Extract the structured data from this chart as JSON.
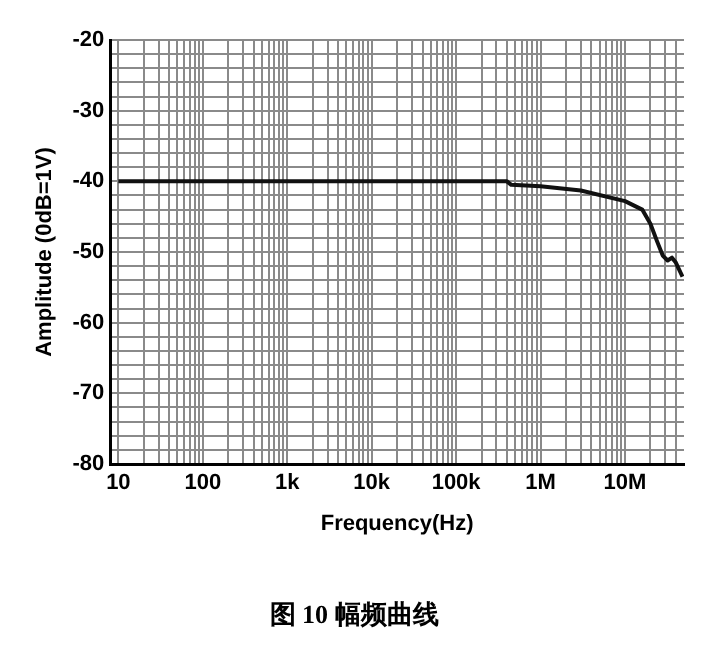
{
  "chart_data": {
    "type": "line",
    "title": "图 10 幅频曲线",
    "xlabel": "Frequency(Hz)",
    "ylabel": "Amplitude (0dB=1V)",
    "log": "x",
    "grid": true,
    "legend": false,
    "marker": "none",
    "line_style": "solid",
    "xlim": [
      8,
      50000000
    ],
    "ylim": [
      -80,
      -20
    ],
    "xticks": [
      {
        "value": 10,
        "label": "10"
      },
      {
        "value": 20,
        "label": null
      },
      {
        "value": 30,
        "label": null
      },
      {
        "value": 40,
        "label": null
      },
      {
        "value": 50,
        "label": null
      },
      {
        "value": 60,
        "label": null
      },
      {
        "value": 70,
        "label": null
      },
      {
        "value": 80,
        "label": null
      },
      {
        "value": 90,
        "label": null
      },
      {
        "value": 100,
        "label": "100"
      },
      {
        "value": 200,
        "label": null
      },
      {
        "value": 300,
        "label": null
      },
      {
        "value": 400,
        "label": null
      },
      {
        "value": 500,
        "label": null
      },
      {
        "value": 600,
        "label": null
      },
      {
        "value": 700,
        "label": null
      },
      {
        "value": 800,
        "label": null
      },
      {
        "value": 900,
        "label": null
      },
      {
        "value": 1000,
        "label": "1k"
      },
      {
        "value": 2000,
        "label": null
      },
      {
        "value": 3000,
        "label": null
      },
      {
        "value": 4000,
        "label": null
      },
      {
        "value": 5000,
        "label": null
      },
      {
        "value": 6000,
        "label": null
      },
      {
        "value": 7000,
        "label": null
      },
      {
        "value": 8000,
        "label": null
      },
      {
        "value": 9000,
        "label": null
      },
      {
        "value": 10000,
        "label": "10k"
      },
      {
        "value": 20000,
        "label": null
      },
      {
        "value": 30000,
        "label": null
      },
      {
        "value": 40000,
        "label": null
      },
      {
        "value": 50000,
        "label": null
      },
      {
        "value": 60000,
        "label": null
      },
      {
        "value": 70000,
        "label": null
      },
      {
        "value": 80000,
        "label": null
      },
      {
        "value": 90000,
        "label": null
      },
      {
        "value": 100000,
        "label": "100k"
      },
      {
        "value": 200000,
        "label": null
      },
      {
        "value": 300000,
        "label": null
      },
      {
        "value": 400000,
        "label": null
      },
      {
        "value": 500000,
        "label": null
      },
      {
        "value": 600000,
        "label": null
      },
      {
        "value": 700000,
        "label": null
      },
      {
        "value": 800000,
        "label": null
      },
      {
        "value": 900000,
        "label": null
      },
      {
        "value": 1000000,
        "label": "1M"
      },
      {
        "value": 2000000,
        "label": null
      },
      {
        "value": 3000000,
        "label": null
      },
      {
        "value": 4000000,
        "label": null
      },
      {
        "value": 5000000,
        "label": null
      },
      {
        "value": 6000000,
        "label": null
      },
      {
        "value": 7000000,
        "label": null
      },
      {
        "value": 8000000,
        "label": null
      },
      {
        "value": 9000000,
        "label": null
      },
      {
        "value": 10000000,
        "label": "10M"
      },
      {
        "value": 20000000,
        "label": null
      },
      {
        "value": 30000000,
        "label": null
      },
      {
        "value": 40000000,
        "label": null
      }
    ],
    "yticks": [
      -80,
      {
        "value": -78,
        "label": null
      },
      {
        "value": -76,
        "label": null
      },
      {
        "value": -74,
        "label": null
      },
      {
        "value": -72,
        "label": null
      },
      -70,
      {
        "value": -68,
        "label": null
      },
      {
        "value": -66,
        "label": null
      },
      {
        "value": -64,
        "label": null
      },
      {
        "value": -62,
        "label": null
      },
      -60,
      {
        "value": -58,
        "label": null
      },
      {
        "value": -56,
        "label": null
      },
      {
        "value": -54,
        "label": null
      },
      {
        "value": -52,
        "label": null
      },
      -50,
      {
        "value": -48,
        "label": null
      },
      {
        "value": -46,
        "label": null
      },
      {
        "value": -44,
        "label": null
      },
      {
        "value": -42,
        "label": null
      },
      -40,
      {
        "value": -38,
        "label": null
      },
      {
        "value": -36,
        "label": null
      },
      {
        "value": -34,
        "label": null
      },
      {
        "value": -32,
        "label": null
      },
      -30,
      {
        "value": -28,
        "label": null
      },
      {
        "value": -26,
        "label": null
      },
      {
        "value": -24,
        "label": null
      },
      {
        "value": -22,
        "label": null
      },
      -20
    ],
    "series": [
      {
        "color": "#111111",
        "x": [
          10,
          400000,
          450000,
          1000000,
          3000000,
          10000000,
          16000000,
          20000000,
          24000000,
          28000000,
          32000000,
          36000000,
          40000000,
          48000000
        ],
        "values": [
          -40,
          -40,
          -40.5,
          -40.7,
          -41.3,
          -42.8,
          -44,
          -46,
          -48.5,
          -50.5,
          -51.2,
          -50.8,
          -51.5,
          -53.5
        ]
      }
    ]
  }
}
